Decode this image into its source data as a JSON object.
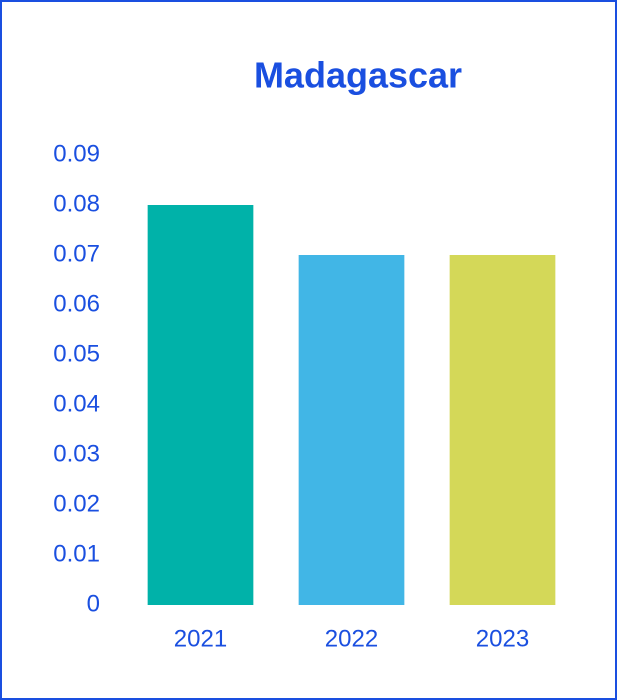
{
  "chart_data": {
    "type": "bar",
    "title": "Madagascar",
    "categories": [
      "2021",
      "2022",
      "2023"
    ],
    "values": [
      0.08,
      0.07,
      0.07
    ],
    "colors": [
      "#00b2a9",
      "#41b6e6",
      "#d4d858"
    ],
    "ylim": [
      0,
      0.09
    ],
    "yticks": [
      0,
      0.01,
      0.02,
      0.03,
      0.04,
      0.05,
      0.06,
      0.07,
      0.08,
      0.09
    ],
    "grid": false
  }
}
